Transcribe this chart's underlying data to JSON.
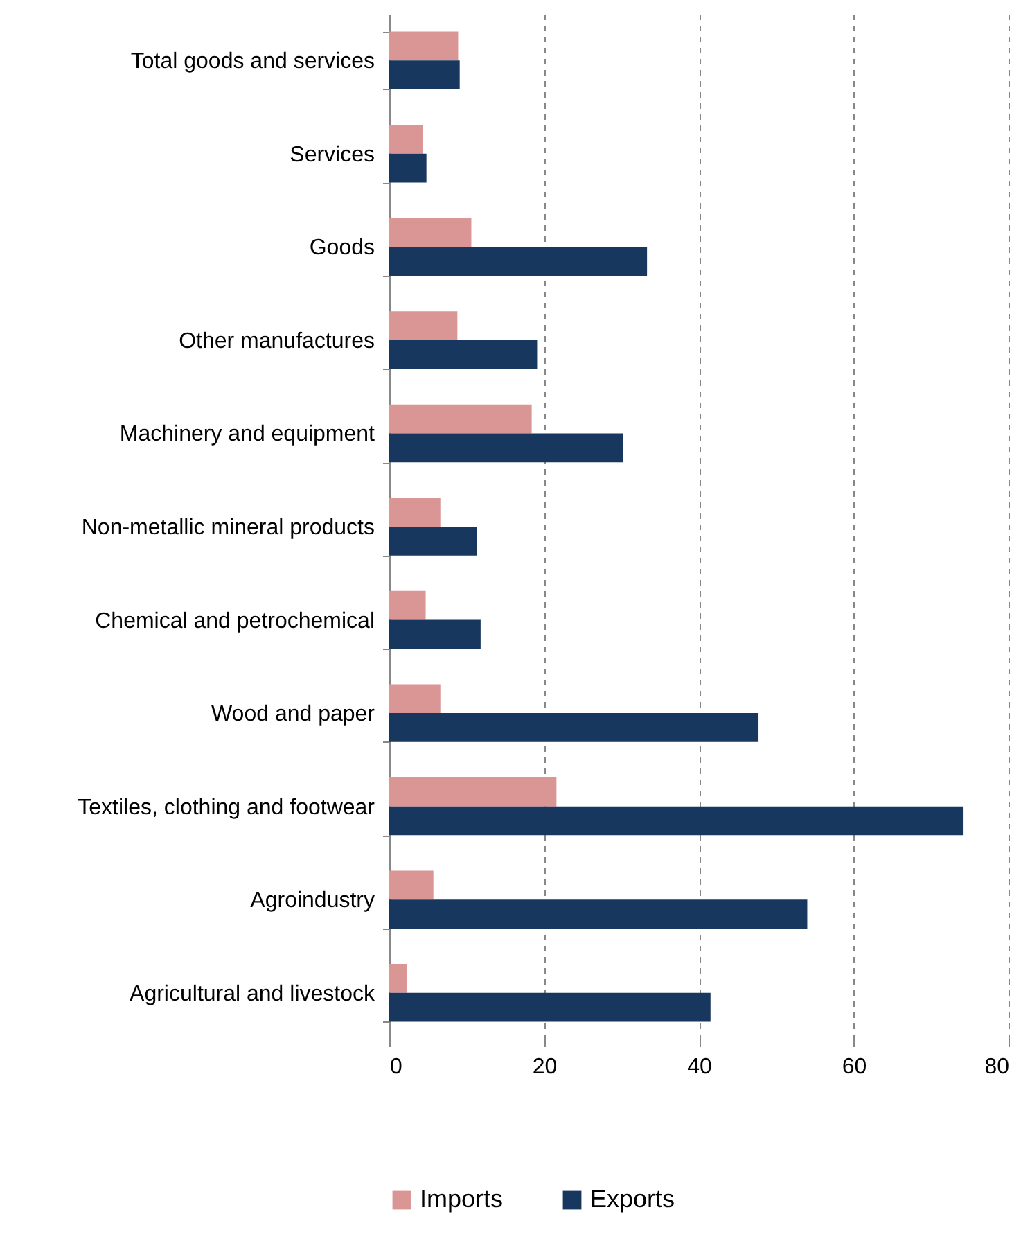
{
  "chart_data": {
    "type": "bar",
    "orientation": "horizontal",
    "categories": [
      "Total goods and services",
      "Services",
      "Goods",
      "Other manufactures",
      "Machinery and equipment",
      "Non-metallic mineral products",
      "Chemical and petrochemical",
      "Wood and paper",
      "Textiles, clothing and footwear",
      "Agroindustry",
      "Agricultural and livestock"
    ],
    "series": [
      {
        "name": "Imports",
        "color": "#d99694",
        "values": [
          8.9,
          4.3,
          10.6,
          8.8,
          18.4,
          6.6,
          4.7,
          6.6,
          21.6,
          5.7,
          2.3
        ]
      },
      {
        "name": "Exports",
        "color": "#17375e",
        "values": [
          9.1,
          4.8,
          33.3,
          19.1,
          30.2,
          11.3,
          11.8,
          47.7,
          74.1,
          54,
          41.5
        ]
      }
    ],
    "xlim": [
      0,
      80
    ],
    "xticks": [
      0,
      20,
      40,
      60,
      80
    ],
    "grid": "x",
    "legend": "bottom"
  }
}
